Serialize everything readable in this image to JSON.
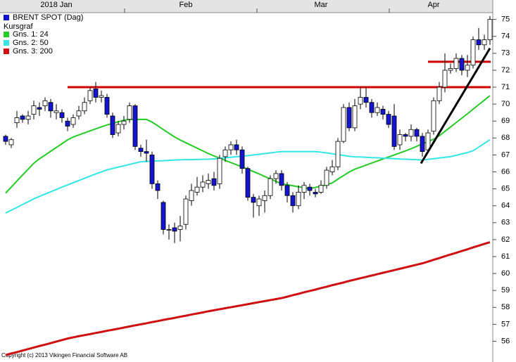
{
  "chart_data": {
    "type": "candlestick",
    "categories": [
      null,
      null,
      null,
      null,
      null,
      null,
      null,
      null,
      null,
      "2018 Jan",
      null,
      null,
      null,
      null,
      null,
      null,
      null,
      null,
      null,
      null,
      null,
      null,
      null,
      null,
      null,
      null,
      null,
      null,
      null,
      null,
      null,
      null,
      "Feb",
      null,
      null,
      null,
      null,
      null,
      null,
      null,
      null,
      null,
      null,
      null,
      null,
      null,
      null,
      null,
      null,
      null,
      null,
      null,
      null,
      null,
      null,
      null,
      "Mar",
      null,
      null,
      null,
      null,
      null,
      null,
      null,
      null,
      null,
      null,
      null,
      null,
      null,
      null,
      null,
      null,
      null,
      null,
      null,
      "Apr",
      null,
      null,
      null,
      null,
      null,
      null,
      null,
      null,
      null,
      null
    ],
    "series": [
      {
        "name": "BRENT SPOT (Dag)",
        "color": "#1414d2",
        "open": [
          68.1,
          67.6,
          68.9,
          69.3,
          69.1,
          69.4,
          69.8,
          69.9,
          70.1,
          69.5,
          69.5,
          69.0,
          68.8,
          69.3,
          69.6,
          70.2,
          70.9,
          70.4,
          70.4,
          69.3,
          68.3,
          68.8,
          69.1,
          69.9,
          67.4,
          67.2,
          67.0,
          65.3,
          64.2,
          62.6,
          62.7,
          62.6,
          62.9,
          64.3,
          64.8,
          65.1,
          65.3,
          65.6,
          65.3,
          66.9,
          67.3,
          67.6,
          67.3,
          66.2,
          64.5,
          64.0,
          64.3,
          64.6,
          65.6,
          65.9,
          65.2,
          64.6,
          64.0,
          64.8,
          65.1,
          64.8,
          64.8,
          65.2,
          66.0,
          66.3,
          67.8,
          69.8,
          68.6,
          70.0,
          70.4,
          70.1,
          69.5,
          69.7,
          69.4,
          69.3,
          67.6,
          68.2,
          68.1,
          68.5,
          68.1,
          67.3,
          68.4,
          70.2,
          71.0,
          72.0,
          72.1,
          72.7,
          72.0,
          72.3,
          73.8,
          73.5,
          73.8
        ],
        "high": [
          68.2,
          68.0,
          69.6,
          69.4,
          69.6,
          70.2,
          70.1,
          70.4,
          70.3,
          70.0,
          69.7,
          69.2,
          69.4,
          69.9,
          70.4,
          71.0,
          71.3,
          70.8,
          70.6,
          69.5,
          69.0,
          69.3,
          70.1,
          70.0,
          67.6,
          67.9,
          67.2,
          65.5,
          64.3,
          62.9,
          63.0,
          63.4,
          64.6,
          65.3,
          65.7,
          65.8,
          65.9,
          66.0,
          67.0,
          67.5,
          67.8,
          67.9,
          67.5,
          66.3,
          64.7,
          64.6,
          64.9,
          65.8,
          66.1,
          66.1,
          65.4,
          64.8,
          65.2,
          65.4,
          65.3,
          65.0,
          65.5,
          66.3,
          66.7,
          68.0,
          70.0,
          70.1,
          70.3,
          71.0,
          71.0,
          70.3,
          70.1,
          69.9,
          69.6,
          70.0,
          68.5,
          68.3,
          68.8,
          68.6,
          68.3,
          68.5,
          70.4,
          71.3,
          73.0,
          72.4,
          73.0,
          72.9,
          72.9,
          74.0,
          74.5,
          74.1,
          75.2
        ],
        "low": [
          67.6,
          67.4,
          68.6,
          68.9,
          68.8,
          69.1,
          69.3,
          69.6,
          69.2,
          69.1,
          68.9,
          68.4,
          68.6,
          69.1,
          69.4,
          70.0,
          70.1,
          70.1,
          69.2,
          68.0,
          68.1,
          68.5,
          68.9,
          67.3,
          66.9,
          66.6,
          65.0,
          64.4,
          62.3,
          62.0,
          61.8,
          61.9,
          62.6,
          64.0,
          64.6,
          64.8,
          65.0,
          64.9,
          65.0,
          66.6,
          67.0,
          67.0,
          65.9,
          64.3,
          63.3,
          63.4,
          63.6,
          64.4,
          65.3,
          64.9,
          64.2,
          63.6,
          63.8,
          64.4,
          64.6,
          64.5,
          64.7,
          65.0,
          65.8,
          66.1,
          67.7,
          68.4,
          68.4,
          69.7,
          69.8,
          69.2,
          69.3,
          69.1,
          68.6,
          67.3,
          67.3,
          67.8,
          67.8,
          67.8,
          66.9,
          67.1,
          68.2,
          70.0,
          70.7,
          71.8,
          71.9,
          71.7,
          71.6,
          72.1,
          73.2,
          73.2,
          73.5
        ],
        "close": [
          67.8,
          67.9,
          69.2,
          69.1,
          69.3,
          69.9,
          69.7,
          70.2,
          69.6,
          69.6,
          69.2,
          68.7,
          69.2,
          69.6,
          70.1,
          70.8,
          70.4,
          70.5,
          69.4,
          68.2,
          68.8,
          69.0,
          69.9,
          67.5,
          67.2,
          67.1,
          65.3,
          64.9,
          62.6,
          62.6,
          62.5,
          62.8,
          64.4,
          64.9,
          65.1,
          65.4,
          65.5,
          65.2,
          66.8,
          67.3,
          67.6,
          67.3,
          66.2,
          64.5,
          64.2,
          64.4,
          64.6,
          65.6,
          65.9,
          65.2,
          64.6,
          64.0,
          64.8,
          65.2,
          64.9,
          64.7,
          65.2,
          66.1,
          66.3,
          67.8,
          69.8,
          68.6,
          69.9,
          70.4,
          70.1,
          69.5,
          69.8,
          69.4,
          68.8,
          67.5,
          68.2,
          68.1,
          68.5,
          68.1,
          67.2,
          68.3,
          70.2,
          71.0,
          72.0,
          72.1,
          72.7,
          72.0,
          72.3,
          73.8,
          73.5,
          73.8,
          75.0
        ]
      }
    ],
    "legend_note": "Kursgraf",
    "lines": [
      {
        "name": "Gns. 1: 24",
        "color": "#22cc22",
        "values": [
          64.75,
          65.1,
          65.46,
          65.81,
          66.16,
          66.51,
          66.77,
          66.99,
          67.22,
          67.44,
          67.66,
          67.89,
          68.06,
          68.18,
          68.3,
          68.42,
          68.54,
          68.66,
          68.77,
          68.87,
          68.96,
          69.05,
          69.1,
          69.1,
          69.1,
          69.1,
          68.94,
          68.72,
          68.5,
          68.28,
          68.06,
          67.88,
          67.72,
          67.56,
          67.4,
          67.24,
          67.08,
          66.94,
          66.81,
          66.68,
          66.55,
          66.42,
          66.3,
          66.16,
          66.02,
          65.88,
          65.73,
          65.59,
          65.44,
          65.3,
          65.24,
          65.18,
          65.12,
          65.06,
          65.0,
          65.08,
          65.16,
          65.24,
          65.35,
          65.57,
          65.78,
          65.99,
          66.16,
          66.28,
          66.4,
          66.52,
          66.64,
          66.76,
          66.88,
          67.0,
          67.12,
          67.24,
          67.37,
          67.51,
          67.65,
          67.79,
          67.93,
          68.13,
          68.39,
          68.65,
          68.91,
          69.17,
          69.43,
          69.7,
          69.97,
          70.23,
          70.5
        ]
      },
      {
        "name": "Gns. 2: 50",
        "color": "#33e6e6",
        "values": [
          63.57,
          63.74,
          63.9,
          64.07,
          64.24,
          64.41,
          64.55,
          64.69,
          64.82,
          64.96,
          65.1,
          65.23,
          65.36,
          65.49,
          65.62,
          65.75,
          65.88,
          66.0,
          66.12,
          66.2,
          66.28,
          66.36,
          66.44,
          66.52,
          66.6,
          66.62,
          66.63,
          66.65,
          66.66,
          66.68,
          66.7,
          66.71,
          66.72,
          66.72,
          66.73,
          66.74,
          66.75,
          66.77,
          66.8,
          66.83,
          66.86,
          66.9,
          66.93,
          66.96,
          67.0,
          67.04,
          67.08,
          67.12,
          67.16,
          67.2,
          67.2,
          67.2,
          67.2,
          67.2,
          67.2,
          67.2,
          67.16,
          67.12,
          67.07,
          67.02,
          66.97,
          66.92,
          66.89,
          66.88,
          66.86,
          66.84,
          66.83,
          66.81,
          66.8,
          66.78,
          66.76,
          66.75,
          66.73,
          66.72,
          66.7,
          66.74,
          66.78,
          66.82,
          66.86,
          66.9,
          66.98,
          67.06,
          67.14,
          67.25,
          67.46,
          67.68,
          67.9
        ]
      },
      {
        "name": "Gns. 3: 200",
        "color": "#d01010",
        "values": [
          55.19,
          55.28,
          55.36,
          55.45,
          55.54,
          55.63,
          55.72,
          55.8,
          55.89,
          55.98,
          56.07,
          56.16,
          56.23,
          56.3,
          56.36,
          56.42,
          56.49,
          56.55,
          56.62,
          56.68,
          56.74,
          56.81,
          56.87,
          56.94,
          57.0,
          57.06,
          57.13,
          57.19,
          57.26,
          57.32,
          57.38,
          57.45,
          57.51,
          57.58,
          57.64,
          57.7,
          57.77,
          57.83,
          57.89,
          57.95,
          58.01,
          58.07,
          58.13,
          58.19,
          58.25,
          58.31,
          58.37,
          58.43,
          58.49,
          58.55,
          58.63,
          58.72,
          58.8,
          58.89,
          58.97,
          59.05,
          59.14,
          59.22,
          59.31,
          59.39,
          59.47,
          59.56,
          59.64,
          59.72,
          59.8,
          59.88,
          59.96,
          60.04,
          60.12,
          60.2,
          60.28,
          60.36,
          60.44,
          60.52,
          60.6,
          60.7,
          60.81,
          60.91,
          61.02,
          61.12,
          61.22,
          61.33,
          61.43,
          61.54,
          61.64,
          61.75,
          61.85
        ]
      }
    ],
    "hlines": [
      {
        "value": 71,
        "start": 11,
        "color": "#d00000"
      },
      {
        "value": 72.5,
        "start": 75,
        "color": "#d00000"
      }
    ],
    "trendline": {
      "x": [
        73.75,
        86
      ],
      "y": [
        66.5,
        73.3
      ],
      "color": "#000000"
    },
    "ylim": [
      54.9,
      75.4
    ],
    "yticks": [
      56,
      57,
      58,
      59,
      60,
      61,
      62,
      63,
      64,
      65,
      66,
      67,
      68,
      69,
      70,
      71,
      72,
      73,
      74,
      75
    ],
    "copyright": "Copyright (c) 2013 Vikingen Financial Software AB"
  }
}
